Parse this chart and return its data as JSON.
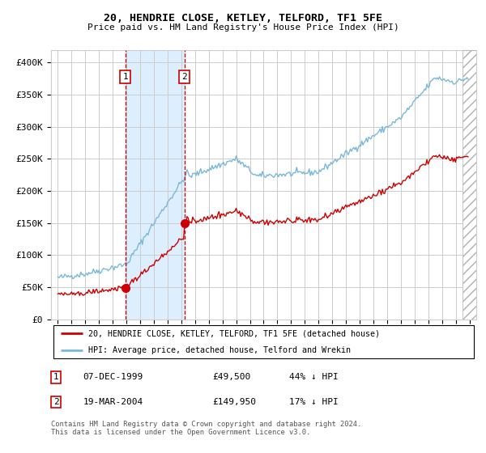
{
  "title": "20, HENDRIE CLOSE, KETLEY, TELFORD, TF1 5FE",
  "subtitle": "Price paid vs. HM Land Registry's House Price Index (HPI)",
  "legend_line1": "20, HENDRIE CLOSE, KETLEY, TELFORD, TF1 5FE (detached house)",
  "legend_line2": "HPI: Average price, detached house, Telford and Wrekin",
  "table_row1": [
    "1",
    "07-DEC-1999",
    "£49,500",
    "44% ↓ HPI"
  ],
  "table_row2": [
    "2",
    "19-MAR-2004",
    "£149,950",
    "17% ↓ HPI"
  ],
  "footnote": "Contains HM Land Registry data © Crown copyright and database right 2024.\nThis data is licensed under the Open Government Licence v3.0.",
  "hpi_color": "#7ab8d9",
  "price_color": "#cc0000",
  "marker_color": "#cc0000",
  "shade_color": "#ddeeff",
  "vline_color": "#cc0000",
  "grid_color": "#cccccc",
  "background_color": "#ffffff",
  "sale1_year": 1999.92,
  "sale1_price": 49500,
  "sale2_year": 2004.22,
  "sale2_price": 149950,
  "ylim": [
    0,
    420000
  ],
  "yticks": [
    0,
    50000,
    100000,
    150000,
    200000,
    250000,
    300000,
    350000,
    400000
  ],
  "ytick_labels": [
    "£0",
    "£50K",
    "£100K",
    "£150K",
    "£200K",
    "£250K",
    "£300K",
    "£350K",
    "£400K"
  ],
  "xlim_start": 1994.5,
  "xlim_end": 2025.5,
  "hatch_start": 2024.5
}
